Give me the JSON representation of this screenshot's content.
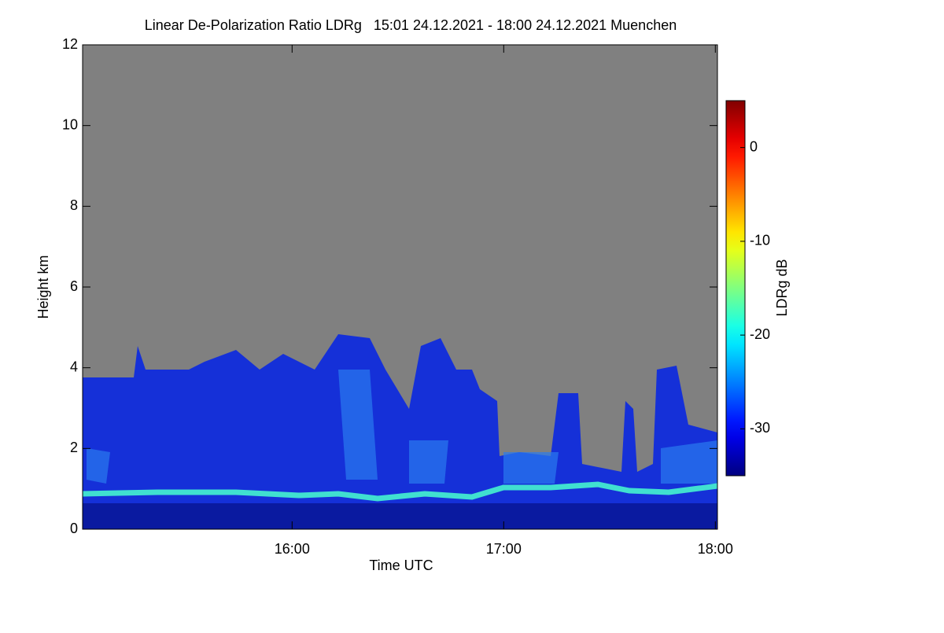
{
  "chart_data": {
    "type": "heatmap",
    "title": "Linear De-Polarization Ratio LDRg   15:01 24.12.2021 - 18:00 24.12.2021 Muenchen",
    "xlabel": "Time UTC",
    "ylabel": "Height km",
    "xlim": [
      15.01,
      18.01
    ],
    "xticks": [
      {
        "value": 16,
        "label": "16:00"
      },
      {
        "value": 17,
        "label": "17:00"
      },
      {
        "value": 18,
        "label": "18:00"
      }
    ],
    "ylim": [
      0,
      12
    ],
    "yticks": [
      0,
      2,
      4,
      6,
      8,
      10,
      12
    ],
    "colorbar": {
      "label": "LDRg dB",
      "lim": [
        -35,
        5
      ],
      "ticks": [
        0,
        -10,
        -20,
        -30
      ],
      "colormap": "jet"
    }
  }
}
